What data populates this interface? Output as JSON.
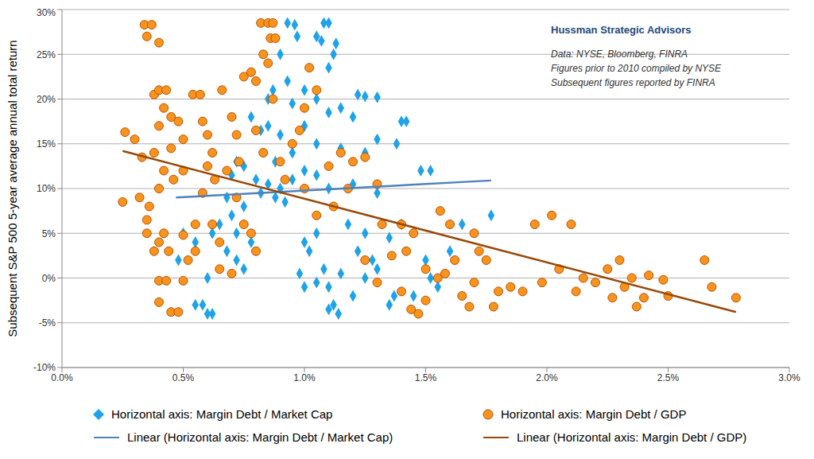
{
  "chart_data": {
    "type": "scatter",
    "ylabel": "Subsequent S&P 500 5-year average annual total return",
    "annotations": [
      "Hussman Strategic Advisors",
      "Data: NYSE, Bloomberg, FINRA",
      "Figures prior to 2010 compiled by NYSE",
      "Subsequent figures reported by FINRA"
    ],
    "xlim": [
      0,
      3
    ],
    "xticks": [
      {
        "value": 0,
        "label": "0.0%"
      },
      {
        "value": 0.5,
        "label": "0.5%"
      },
      {
        "value": 1,
        "label": "1.0%"
      },
      {
        "value": 1.5,
        "label": "1.5%"
      },
      {
        "value": 2,
        "label": "2.0%"
      },
      {
        "value": 2.5,
        "label": "2.5%"
      },
      {
        "value": 3,
        "label": "3.0%"
      }
    ],
    "ylim": [
      -10,
      30
    ],
    "yticks": [
      {
        "value": -10,
        "label": "-10%"
      },
      {
        "value": -5,
        "label": "-5%"
      },
      {
        "value": 0,
        "label": "0%"
      },
      {
        "value": 5,
        "label": "5%"
      },
      {
        "value": 10,
        "label": "10%"
      },
      {
        "value": 15,
        "label": "15%"
      },
      {
        "value": 20,
        "label": "20%"
      },
      {
        "value": 25,
        "label": "25%"
      },
      {
        "value": 30,
        "label": "30%"
      }
    ],
    "grid": true,
    "legend": "bottom",
    "series": [
      {
        "name": "Horizontal axis: Margin Debt / Market Cap",
        "type": "scatter",
        "marker": "diamond",
        "color": "#1fa3e8",
        "x": [
          0.93,
          0.96,
          1.08,
          1.1,
          0.97,
          1.05,
          1.07,
          1.13,
          0.9,
          1.12,
          1.1,
          0.93,
          1.0,
          0.95,
          1.05,
          1.22,
          1.25,
          1.3,
          1.15,
          0.85,
          0.82,
          0.9,
          1.0,
          1.1,
          1.2,
          1.4,
          1.42,
          1.38,
          1.3,
          1.25,
          1.15,
          1.05,
          0.95,
          0.88,
          0.75,
          0.7,
          0.8,
          0.85,
          0.9,
          0.95,
          1.0,
          1.05,
          1.1,
          1.2,
          1.3,
          1.48,
          1.52,
          0.72,
          0.68,
          0.75,
          0.7,
          0.65,
          0.72,
          0.78,
          0.62,
          0.68,
          0.72,
          0.75,
          0.6,
          0.55,
          0.58,
          0.6,
          0.62,
          0.48,
          0.5,
          0.55,
          1.0,
          1.02,
          1.05,
          1.08,
          1.1,
          1.12,
          1.14,
          1.1,
          1.2,
          1.25,
          1.3,
          1.35,
          1.37,
          1.22,
          1.28,
          1.15,
          1.52,
          1.55,
          1.5,
          1.45,
          1.65,
          1.77,
          1.6,
          0.98,
          1.0,
          1.05,
          0.88,
          0.92,
          0.82,
          1.18,
          1.25,
          1.35,
          1.4,
          0.78,
          0.85,
          0.87
        ],
        "values": [
          28.5,
          28.3,
          28.5,
          28.5,
          27,
          27,
          26.5,
          26.2,
          25,
          25,
          23.5,
          22,
          21,
          19.5,
          20,
          20.5,
          20.3,
          20.2,
          19,
          17,
          16.5,
          16,
          17,
          18.5,
          18,
          17.5,
          17.5,
          15,
          15.5,
          14,
          14.5,
          15,
          14,
          13,
          12.5,
          11.5,
          11,
          10.5,
          10,
          11,
          12,
          11.5,
          10,
          10.5,
          9.5,
          12,
          12,
          13,
          9,
          8,
          7,
          6,
          5,
          4,
          5,
          3,
          2,
          1,
          0,
          -3,
          -3,
          -4,
          -4,
          2,
          5,
          4,
          4,
          3,
          5,
          1,
          -1,
          -3,
          -4,
          -3.5,
          -2,
          0,
          1,
          -3,
          -2,
          3,
          2,
          0.5,
          0,
          -1,
          2,
          -2,
          6,
          7,
          3,
          0.5,
          -1,
          -0.5,
          9,
          8.5,
          9.5,
          6,
          5,
          4.5,
          6,
          18,
          20,
          21
        ]
      },
      {
        "name": "Horizontal axis: Margin Debt / GDP",
        "type": "scatter",
        "marker": "circle",
        "color": "#f7941d",
        "x": [
          0.26,
          0.3,
          0.25,
          0.32,
          0.35,
          0.33,
          0.34,
          0.37,
          0.35,
          0.4,
          0.38,
          0.4,
          0.43,
          0.42,
          0.45,
          0.4,
          0.48,
          0.5,
          0.38,
          0.45,
          0.42,
          0.5,
          0.46,
          0.4,
          0.36,
          0.35,
          0.38,
          0.4,
          0.42,
          0.44,
          0.4,
          0.43,
          0.4,
          0.45,
          0.48,
          0.5,
          0.52,
          0.55,
          0.5,
          0.55,
          0.54,
          0.57,
          0.58,
          0.6,
          0.62,
          0.6,
          0.63,
          0.58,
          0.62,
          0.65,
          0.65,
          0.7,
          0.66,
          0.7,
          0.72,
          0.73,
          0.68,
          0.72,
          0.75,
          0.78,
          0.8,
          0.75,
          0.78,
          0.8,
          0.82,
          0.85,
          0.87,
          0.83,
          0.86,
          0.88,
          0.85,
          0.87,
          0.8,
          0.83,
          0.9,
          0.95,
          0.98,
          1.0,
          1.02,
          1.05,
          0.92,
          1.0,
          1.1,
          1.15,
          1.2,
          1.25,
          1.3,
          1.18,
          1.05,
          1.12,
          1.32,
          1.36,
          1.4,
          1.45,
          1.42,
          1.4,
          1.44,
          1.47,
          1.5,
          1.5,
          1.55,
          1.58,
          1.56,
          1.6,
          1.62,
          1.65,
          1.68,
          1.7,
          1.72,
          1.75,
          1.78,
          1.8,
          1.85,
          1.9,
          1.95,
          1.98,
          2.02,
          2.05,
          2.1,
          2.12,
          2.15,
          2.2,
          2.25,
          2.27,
          2.3,
          2.32,
          2.35,
          2.37,
          2.4,
          2.42,
          2.5,
          2.48,
          2.65,
          2.68,
          2.78,
          1.25,
          1.3,
          1.7
        ],
        "values": [
          16.3,
          15.5,
          8.5,
          9,
          6.5,
          13.5,
          28.3,
          28.3,
          27,
          26.3,
          20.5,
          21,
          21,
          19,
          18,
          17,
          17.5,
          15.5,
          14,
          14.5,
          12,
          12,
          11,
          10,
          8,
          5,
          3,
          4,
          5,
          3,
          -0.3,
          -0.3,
          -2.7,
          -3.8,
          -3.8,
          -0.3,
          2,
          3,
          4.8,
          6,
          20.5,
          20.5,
          17.5,
          16,
          14,
          12.5,
          11,
          9.5,
          6,
          4,
          1,
          0.5,
          21,
          18,
          16,
          13,
          12,
          9,
          6,
          5,
          3,
          22.5,
          23,
          22,
          28.5,
          28.5,
          28.5,
          25,
          26.8,
          26.8,
          24,
          20,
          16.5,
          14,
          13,
          15,
          16.5,
          19,
          23.5,
          21,
          11,
          10,
          12.5,
          14,
          13,
          13.5,
          10.5,
          10,
          7,
          8,
          6,
          2.5,
          6,
          5,
          3,
          -1.5,
          -3.5,
          -4,
          -2.5,
          1,
          0,
          0.5,
          7.5,
          6,
          2,
          -2,
          -3.2,
          -0.5,
          3,
          2,
          -3.2,
          -1.5,
          -1,
          -1.5,
          6,
          -0.5,
          7,
          1,
          6,
          -1.5,
          0,
          -0.5,
          1,
          -2.2,
          2,
          -1,
          0,
          -3.2,
          -2.2,
          0.3,
          -2,
          -0.2,
          2,
          -1,
          -2.2,
          2,
          -0.5,
          5
        ]
      },
      {
        "name": "Linear (Horizontal axis: Margin Debt / Market Cap)",
        "type": "line",
        "line_style": "solid",
        "color": "#4f81bd",
        "x": [
          0.47,
          1.77
        ],
        "values": [
          9.0,
          10.9
        ]
      },
      {
        "name": "Linear (Horizontal axis: Margin Debt / GDP)",
        "type": "line",
        "line_style": "solid",
        "color": "#984807",
        "x": [
          0.25,
          2.78
        ],
        "values": [
          14.2,
          -3.8
        ]
      }
    ]
  }
}
